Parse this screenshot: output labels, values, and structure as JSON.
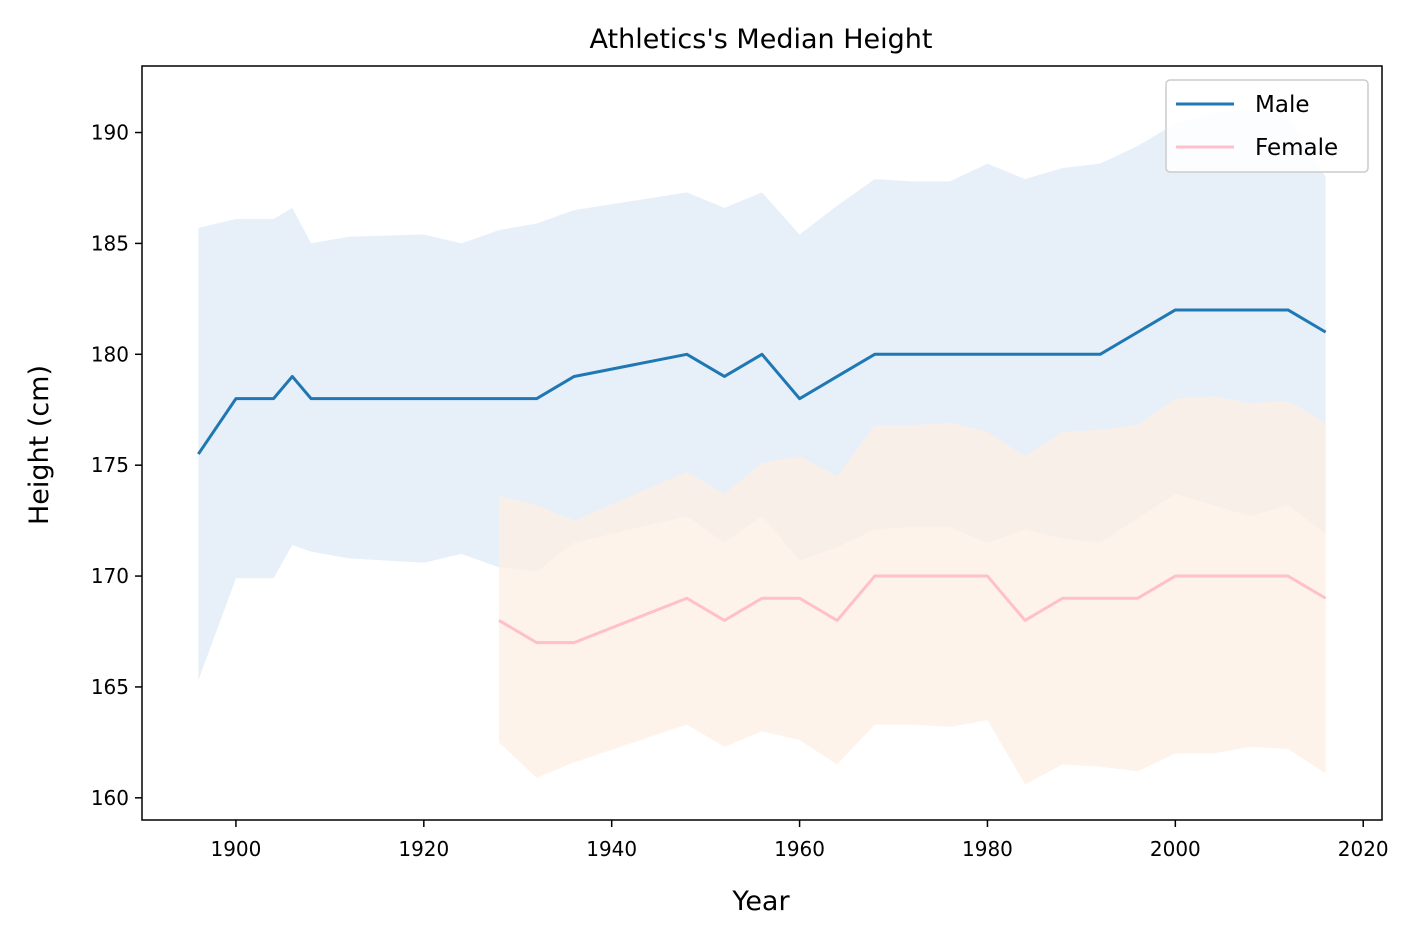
{
  "chart_data": {
    "type": "line",
    "title": "Athletics's Median Height",
    "xlabel": "Year",
    "ylabel": "Height (cm)",
    "xlim": [
      1890,
      2022
    ],
    "ylim": [
      159,
      193
    ],
    "xticks": [
      1900,
      1920,
      1940,
      1960,
      1980,
      2000,
      2020
    ],
    "yticks": [
      160,
      165,
      170,
      175,
      180,
      185,
      190
    ],
    "grid": false,
    "legend_position": "top-right",
    "series": [
      {
        "name": "Male",
        "color": "#1f77b4",
        "band_color": "#e7f0f8",
        "x": [
          1896,
          1900,
          1904,
          1906,
          1908,
          1912,
          1920,
          1924,
          1928,
          1932,
          1936,
          1948,
          1952,
          1956,
          1960,
          1964,
          1968,
          1972,
          1976,
          1980,
          1984,
          1988,
          1992,
          1996,
          2000,
          2004,
          2008,
          2012,
          2016
        ],
        "median": [
          175.5,
          178,
          178,
          179,
          178,
          178,
          178,
          178,
          178,
          178,
          179,
          180,
          179,
          180,
          178,
          179,
          180,
          180,
          180,
          180,
          180,
          180,
          180,
          181,
          182,
          182,
          182,
          182,
          181
        ],
        "upper": [
          185.7,
          186.1,
          186.1,
          186.6,
          185.0,
          185.3,
          185.4,
          185.0,
          185.6,
          185.9,
          186.5,
          187.3,
          186.6,
          187.3,
          185.4,
          186.7,
          187.9,
          187.8,
          187.8,
          188.6,
          187.9,
          188.4,
          188.6,
          189.4,
          190.4,
          190.9,
          191.0,
          190.8,
          188.0
        ],
        "lower": [
          165.3,
          169.9,
          169.9,
          171.4,
          171.1,
          170.8,
          170.6,
          171.0,
          170.4,
          170.2,
          171.5,
          172.7,
          171.5,
          172.7,
          170.7,
          171.3,
          172.1,
          172.2,
          172.2,
          171.5,
          172.1,
          171.7,
          171.5,
          172.6,
          173.7,
          173.2,
          172.7,
          173.2,
          171.9
        ]
      },
      {
        "name": "Female",
        "color": "#ffc0cb",
        "band_color": "#fdefe4",
        "x": [
          1928,
          1932,
          1936,
          1948,
          1952,
          1956,
          1960,
          1964,
          1968,
          1972,
          1976,
          1980,
          1984,
          1988,
          1992,
          1996,
          2000,
          2004,
          2008,
          2012,
          2016
        ],
        "median": [
          168,
          167,
          167,
          169,
          168,
          169,
          169,
          168,
          170,
          170,
          170,
          170,
          168,
          169,
          169,
          169,
          170,
          170,
          170,
          170,
          169
        ],
        "upper": [
          173.6,
          173.2,
          172.5,
          174.7,
          173.7,
          175.1,
          175.4,
          174.5,
          176.8,
          176.8,
          176.9,
          176.5,
          175.4,
          176.5,
          176.6,
          176.8,
          178.0,
          178.1,
          177.8,
          177.9,
          176.9
        ],
        "lower": [
          162.5,
          160.9,
          161.6,
          163.3,
          162.3,
          163.0,
          162.6,
          161.5,
          163.3,
          163.3,
          163.2,
          163.5,
          160.6,
          161.5,
          161.4,
          161.2,
          162.0,
          162.0,
          162.3,
          162.2,
          161.1
        ]
      }
    ]
  }
}
